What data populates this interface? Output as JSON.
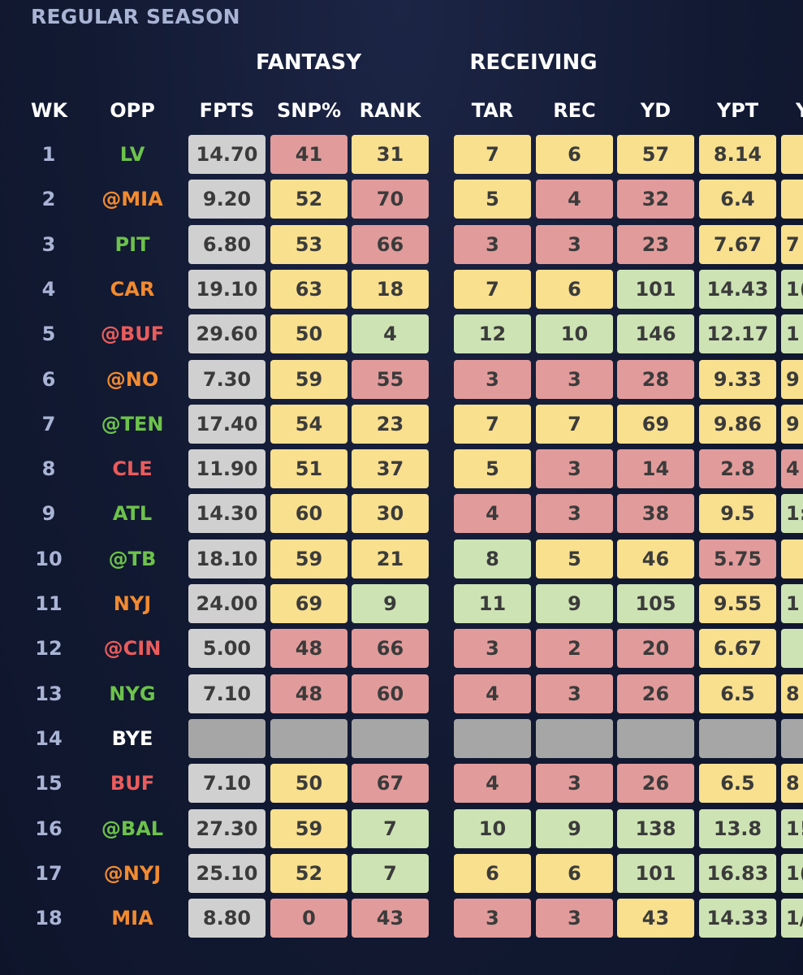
{
  "title": "REGULAR SEASON",
  "groups": {
    "fantasy": "FANTASY",
    "receiving": "RECEIVING"
  },
  "headers": {
    "wk": "WK",
    "opp": "OPP",
    "fpts": "FPTS",
    "snp": "SNP%",
    "rank": "RANK",
    "tar": "TAR",
    "rec": "REC",
    "yd": "YD",
    "ypt": "YPT",
    "partial": "Y"
  },
  "colors": {
    "gray": "#d0d0d0",
    "bye": "#a6a6a6",
    "red": "#e29b9b",
    "yellow": "#f9e08e",
    "green": "#cde3b3",
    "opp_green": "#6cc24a",
    "opp_orange": "#f28a30",
    "opp_red": "#ea5b5b",
    "opp_white": "#ffffff"
  },
  "rows": [
    {
      "wk": "1",
      "opp": "LV",
      "opp_color": "green",
      "fpts": "14.70",
      "snp": "41",
      "snp_c": "red",
      "rank": "31",
      "rank_c": "yellow",
      "tar": "7",
      "tar_c": "yellow",
      "rec": "6",
      "rec_c": "yellow",
      "yd": "57",
      "yd_c": "yellow",
      "ypt": "8.14",
      "ypt_c": "yellow",
      "partial": "",
      "partial_c": "yellow"
    },
    {
      "wk": "2",
      "opp": "@MIA",
      "opp_color": "orange",
      "fpts": "9.20",
      "snp": "52",
      "snp_c": "yellow",
      "rank": "70",
      "rank_c": "red",
      "tar": "5",
      "tar_c": "yellow",
      "rec": "4",
      "rec_c": "red",
      "yd": "32",
      "yd_c": "red",
      "ypt": "6.4",
      "ypt_c": "yellow",
      "partial": "",
      "partial_c": "yellow"
    },
    {
      "wk": "3",
      "opp": "PIT",
      "opp_color": "green",
      "fpts": "6.80",
      "snp": "53",
      "snp_c": "yellow",
      "rank": "66",
      "rank_c": "red",
      "tar": "3",
      "tar_c": "red",
      "rec": "3",
      "rec_c": "red",
      "yd": "23",
      "yd_c": "red",
      "ypt": "7.67",
      "ypt_c": "yellow",
      "partial": "7",
      "partial_c": "yellow"
    },
    {
      "wk": "4",
      "opp": "CAR",
      "opp_color": "orange",
      "fpts": "19.10",
      "snp": "63",
      "snp_c": "yellow",
      "rank": "18",
      "rank_c": "yellow",
      "tar": "7",
      "tar_c": "yellow",
      "rec": "6",
      "rec_c": "yellow",
      "yd": "101",
      "yd_c": "green",
      "ypt": "14.43",
      "ypt_c": "green",
      "partial": "1(",
      "partial_c": "green"
    },
    {
      "wk": "5",
      "opp": "@BUF",
      "opp_color": "red",
      "fpts": "29.60",
      "snp": "50",
      "snp_c": "yellow",
      "rank": "4",
      "rank_c": "green",
      "tar": "12",
      "tar_c": "green",
      "rec": "10",
      "rec_c": "green",
      "yd": "146",
      "yd_c": "green",
      "ypt": "12.17",
      "ypt_c": "green",
      "partial": "1",
      "partial_c": "green"
    },
    {
      "wk": "6",
      "opp": "@NO",
      "opp_color": "orange",
      "fpts": "7.30",
      "snp": "59",
      "snp_c": "yellow",
      "rank": "55",
      "rank_c": "red",
      "tar": "3",
      "tar_c": "red",
      "rec": "3",
      "rec_c": "red",
      "yd": "28",
      "yd_c": "red",
      "ypt": "9.33",
      "ypt_c": "yellow",
      "partial": "9",
      "partial_c": "yellow"
    },
    {
      "wk": "7",
      "opp": "@TEN",
      "opp_color": "green",
      "fpts": "17.40",
      "snp": "54",
      "snp_c": "yellow",
      "rank": "23",
      "rank_c": "yellow",
      "tar": "7",
      "tar_c": "yellow",
      "rec": "7",
      "rec_c": "yellow",
      "yd": "69",
      "yd_c": "yellow",
      "ypt": "9.86",
      "ypt_c": "yellow",
      "partial": "9",
      "partial_c": "yellow"
    },
    {
      "wk": "8",
      "opp": "CLE",
      "opp_color": "red",
      "fpts": "11.90",
      "snp": "51",
      "snp_c": "yellow",
      "rank": "37",
      "rank_c": "yellow",
      "tar": "5",
      "tar_c": "yellow",
      "rec": "3",
      "rec_c": "red",
      "yd": "14",
      "yd_c": "red",
      "ypt": "2.8",
      "ypt_c": "red",
      "partial": "4",
      "partial_c": "red"
    },
    {
      "wk": "9",
      "opp": "ATL",
      "opp_color": "green",
      "fpts": "14.30",
      "snp": "60",
      "snp_c": "yellow",
      "rank": "30",
      "rank_c": "yellow",
      "tar": "4",
      "tar_c": "red",
      "rec": "3",
      "rec_c": "red",
      "yd": "38",
      "yd_c": "red",
      "ypt": "9.5",
      "ypt_c": "yellow",
      "partial": "1:",
      "partial_c": "green"
    },
    {
      "wk": "10",
      "opp": "@TB",
      "opp_color": "green",
      "fpts": "18.10",
      "snp": "59",
      "snp_c": "yellow",
      "rank": "21",
      "rank_c": "yellow",
      "tar": "8",
      "tar_c": "green",
      "rec": "5",
      "rec_c": "yellow",
      "yd": "46",
      "yd_c": "yellow",
      "ypt": "5.75",
      "ypt_c": "red",
      "partial": "",
      "partial_c": "yellow"
    },
    {
      "wk": "11",
      "opp": "NYJ",
      "opp_color": "orange",
      "fpts": "24.00",
      "snp": "69",
      "snp_c": "yellow",
      "rank": "9",
      "rank_c": "green",
      "tar": "11",
      "tar_c": "green",
      "rec": "9",
      "rec_c": "green",
      "yd": "105",
      "yd_c": "green",
      "ypt": "9.55",
      "ypt_c": "yellow",
      "partial": "1",
      "partial_c": "green"
    },
    {
      "wk": "12",
      "opp": "@CIN",
      "opp_color": "red",
      "fpts": "5.00",
      "snp": "48",
      "snp_c": "red",
      "rank": "66",
      "rank_c": "red",
      "tar": "3",
      "tar_c": "red",
      "rec": "2",
      "rec_c": "red",
      "yd": "20",
      "yd_c": "red",
      "ypt": "6.67",
      "ypt_c": "yellow",
      "partial": "",
      "partial_c": "green"
    },
    {
      "wk": "13",
      "opp": "NYG",
      "opp_color": "green",
      "fpts": "7.10",
      "snp": "48",
      "snp_c": "red",
      "rank": "60",
      "rank_c": "red",
      "tar": "4",
      "tar_c": "red",
      "rec": "3",
      "rec_c": "red",
      "yd": "26",
      "yd_c": "red",
      "ypt": "6.5",
      "ypt_c": "yellow",
      "partial": "8",
      "partial_c": "yellow"
    },
    {
      "wk": "14",
      "opp": "BYE",
      "opp_color": "white",
      "fpts": "",
      "snp": "",
      "snp_c": "bye",
      "rank": "",
      "rank_c": "bye",
      "tar": "",
      "tar_c": "bye",
      "rec": "",
      "rec_c": "bye",
      "yd": "",
      "yd_c": "bye",
      "ypt": "",
      "ypt_c": "bye",
      "partial": "",
      "partial_c": "bye"
    },
    {
      "wk": "15",
      "opp": "BUF",
      "opp_color": "red",
      "fpts": "7.10",
      "snp": "50",
      "snp_c": "yellow",
      "rank": "67",
      "rank_c": "red",
      "tar": "4",
      "tar_c": "red",
      "rec": "3",
      "rec_c": "red",
      "yd": "26",
      "yd_c": "red",
      "ypt": "6.5",
      "ypt_c": "yellow",
      "partial": "8",
      "partial_c": "yellow"
    },
    {
      "wk": "16",
      "opp": "@BAL",
      "opp_color": "green",
      "fpts": "27.30",
      "snp": "59",
      "snp_c": "yellow",
      "rank": "7",
      "rank_c": "green",
      "tar": "10",
      "tar_c": "green",
      "rec": "9",
      "rec_c": "green",
      "yd": "138",
      "yd_c": "green",
      "ypt": "13.8",
      "ypt_c": "green",
      "partial": "1!",
      "partial_c": "green"
    },
    {
      "wk": "17",
      "opp": "@NYJ",
      "opp_color": "orange",
      "fpts": "25.10",
      "snp": "52",
      "snp_c": "yellow",
      "rank": "7",
      "rank_c": "green",
      "tar": "6",
      "tar_c": "yellow",
      "rec": "6",
      "rec_c": "yellow",
      "yd": "101",
      "yd_c": "green",
      "ypt": "16.83",
      "ypt_c": "green",
      "partial": "1(",
      "partial_c": "green"
    },
    {
      "wk": "18",
      "opp": "MIA",
      "opp_color": "orange",
      "fpts": "8.80",
      "snp": "0",
      "snp_c": "red",
      "rank": "43",
      "rank_c": "red",
      "tar": "3",
      "tar_c": "red",
      "rec": "3",
      "rec_c": "red",
      "yd": "43",
      "yd_c": "yellow",
      "ypt": "14.33",
      "ypt_c": "green",
      "partial": "1/",
      "partial_c": "green"
    }
  ]
}
